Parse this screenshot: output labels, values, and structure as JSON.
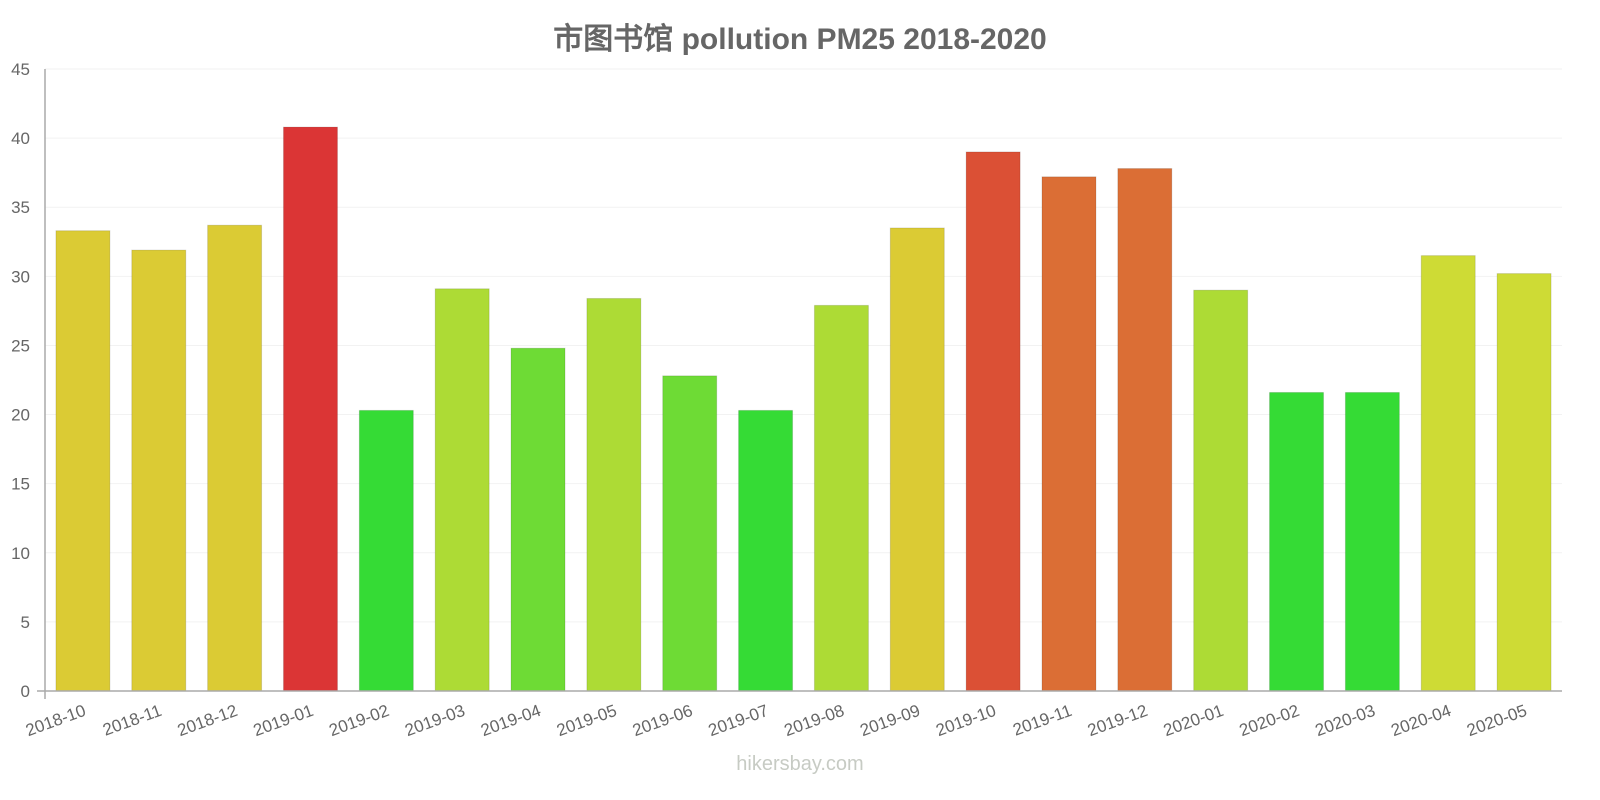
{
  "chart_data": {
    "type": "bar",
    "title": "市图书馆 pollution PM25 2018-2020",
    "xlabel": "",
    "ylabel": "",
    "ylim": [
      0,
      45
    ],
    "yticks": [
      0,
      5,
      10,
      15,
      20,
      25,
      30,
      35,
      40,
      45
    ],
    "grid": true,
    "legend": null,
    "categories": [
      "2018-10",
      "2018-11",
      "2018-12",
      "2019-01",
      "2019-02",
      "2019-03",
      "2019-04",
      "2019-05",
      "2019-06",
      "2019-07",
      "2019-08",
      "2019-09",
      "2019-10",
      "2019-11",
      "2019-12",
      "2020-01",
      "2020-02",
      "2020-03",
      "2020-04",
      "2020-05"
    ],
    "values": [
      33.3,
      31.9,
      33.7,
      40.8,
      20.3,
      29.1,
      24.8,
      28.4,
      22.8,
      20.3,
      27.9,
      33.5,
      39.0,
      37.2,
      37.8,
      29.0,
      21.6,
      21.6,
      31.5,
      30.2
    ],
    "colors": [
      "#dbcb34",
      "#dbcb34",
      "#dbcb34",
      "#db3535",
      "#35db35",
      "#addb35",
      "#6edb35",
      "#addb35",
      "#6edb35",
      "#35db35",
      "#addb35",
      "#dbcb34",
      "#db5035",
      "#db6e35",
      "#db6e35",
      "#addb35",
      "#35db35",
      "#35db35",
      "#cedb35",
      "#cedb35"
    ]
  },
  "watermark": "hikersbay.com",
  "style": {
    "axis_color": "#aaaaaa",
    "grid_color": "#f2f2f2",
    "text_color": "#666666"
  }
}
